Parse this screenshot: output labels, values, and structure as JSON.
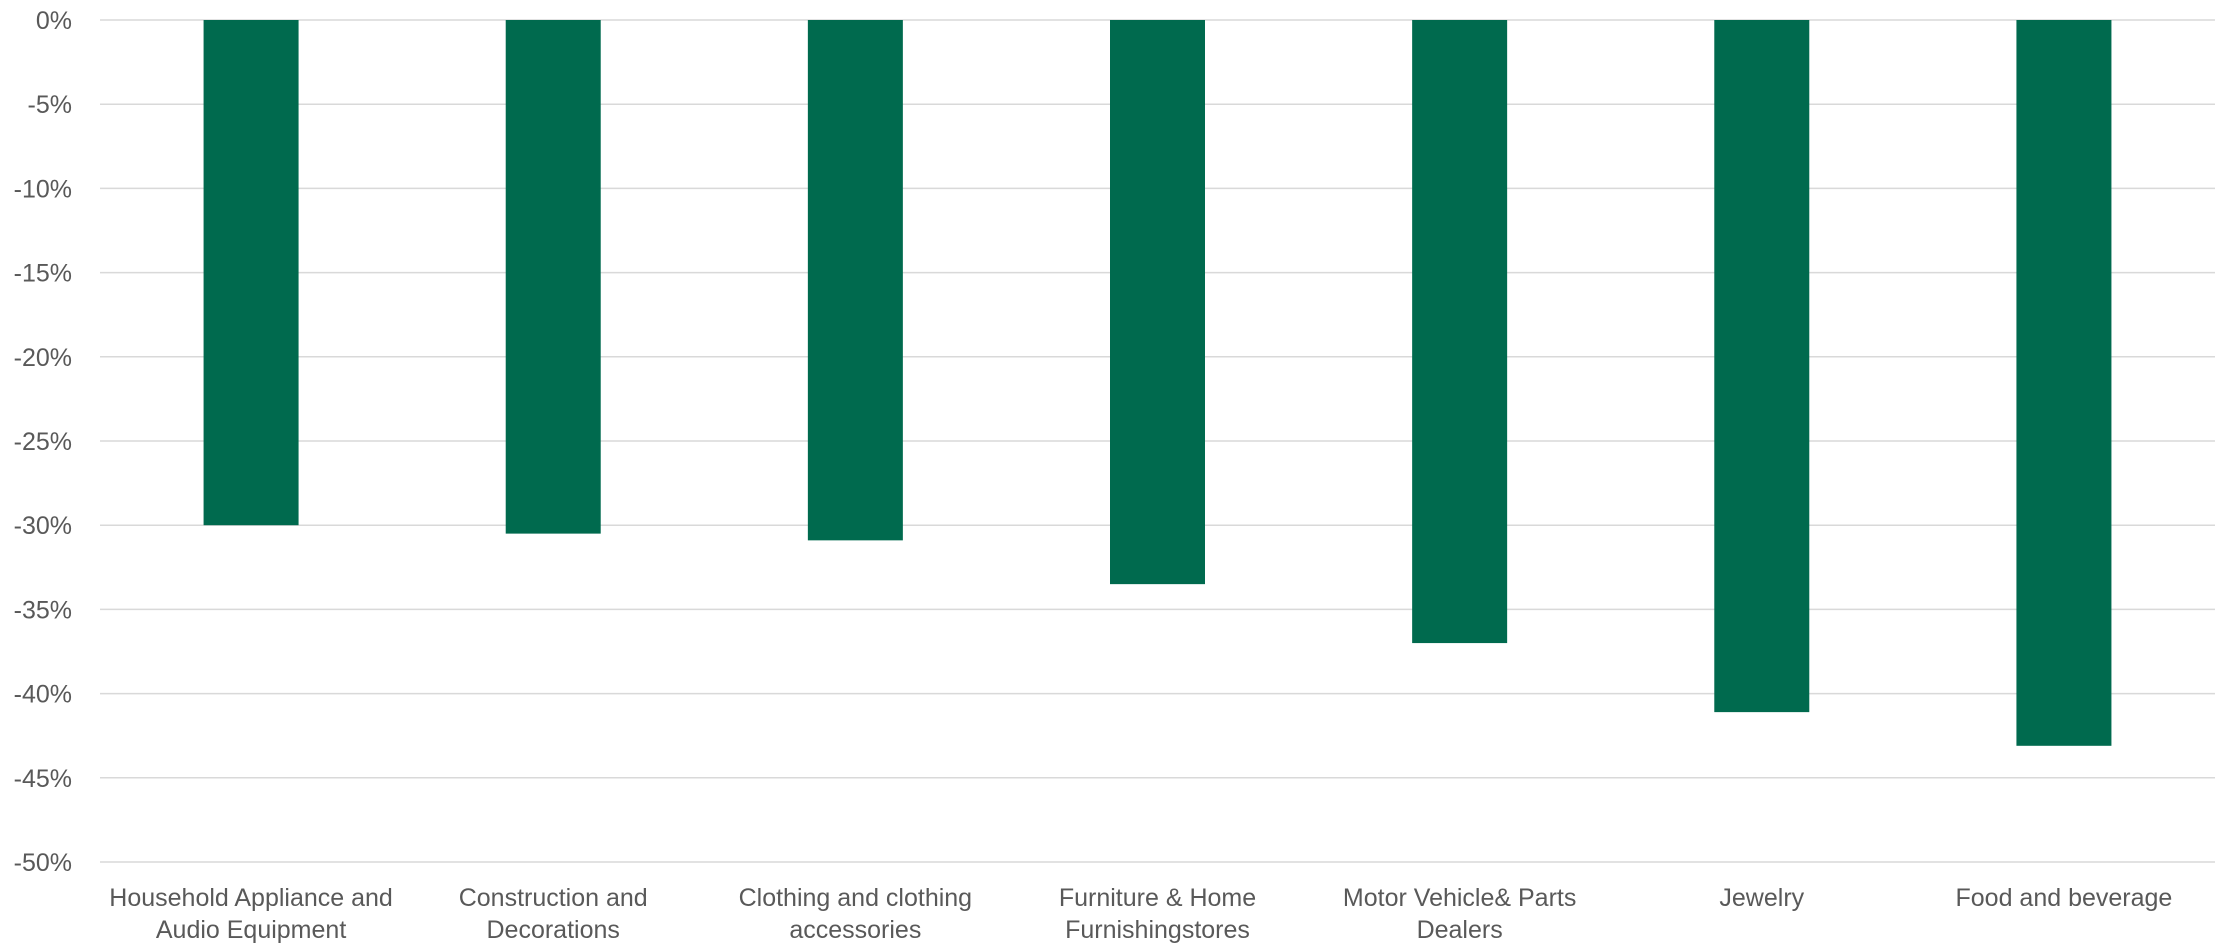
{
  "chart_data": {
    "type": "bar",
    "title": "",
    "xlabel": "",
    "ylabel": "",
    "categories": [
      [
        "Household Appliance and",
        "Audio Equipment"
      ],
      [
        "Construction and",
        "Decorations"
      ],
      [
        "Clothing and clothing",
        "accessories"
      ],
      [
        "Furniture & Home",
        "Furnishingstores"
      ],
      [
        "Motor Vehicle& Parts",
        "Dealers"
      ],
      [
        "Jewelry"
      ],
      [
        "Food and beverage"
      ]
    ],
    "values": [
      -30.0,
      -30.5,
      -30.9,
      -33.5,
      -37.0,
      -41.1,
      -43.1
    ],
    "ylim": [
      -50,
      0
    ],
    "yticks": [
      0,
      -5,
      -10,
      -15,
      -20,
      -25,
      -30,
      -35,
      -40,
      -45,
      -50
    ],
    "ytick_labels": [
      "0%",
      "-5%",
      "-10%",
      "-15%",
      "-20%",
      "-25%",
      "-30%",
      "-35%",
      "-40%",
      "-45%",
      "-50%"
    ],
    "grid": true,
    "legend": "none",
    "bar_color": "#006a4e",
    "grid_color": "#d9d9d9",
    "text_color": "#595959"
  }
}
